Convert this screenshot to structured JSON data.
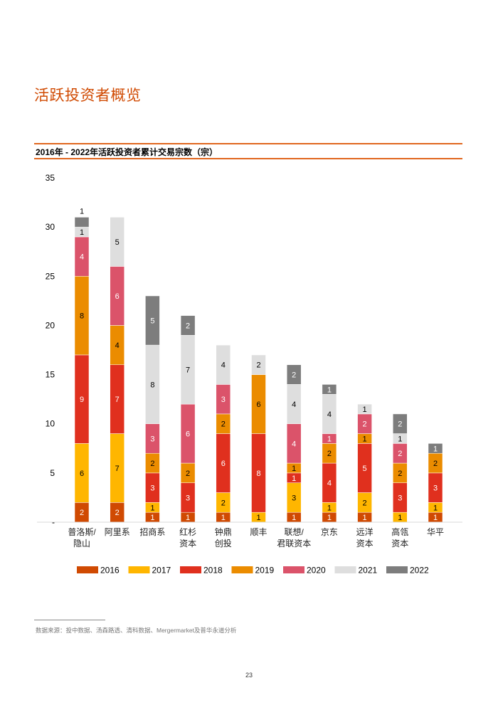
{
  "page": {
    "title": "活跃投资者概览",
    "chart_subtitle": "2016年 - 2022年活跃投资者累计交易宗数（宗）",
    "source": "数据来源：投中数据、汤森路透、清科数据、Mergermarket及普华永道分析",
    "page_number": "23"
  },
  "chart_data": {
    "type": "bar",
    "stacked": true,
    "title": "2016年 - 2022年活跃投资者累计交易宗数（宗）",
    "xlabel": "",
    "ylabel": "",
    "ylim": [
      0,
      35
    ],
    "yticks": [
      0,
      5,
      10,
      15,
      20,
      25,
      30,
      35
    ],
    "ytick_labels": [
      "-",
      "5",
      "10",
      "15",
      "20",
      "25",
      "30",
      "35"
    ],
    "grid": false,
    "legend_position": "bottom",
    "categories": [
      [
        "普洛斯/",
        "隐山"
      ],
      [
        "阿里系"
      ],
      [
        "招商系"
      ],
      [
        "红杉",
        "资本"
      ],
      [
        "钟鼎",
        "创投"
      ],
      [
        "顺丰"
      ],
      [
        "联想/",
        "君联资本"
      ],
      [
        "京东"
      ],
      [
        "远洋",
        "资本"
      ],
      [
        "高瓴",
        "资本"
      ],
      [
        "华平"
      ]
    ],
    "series": [
      {
        "name": "2016",
        "color": "#D04A02",
        "label_color": "#ffffff",
        "values": [
          2,
          2,
          1,
          1,
          1,
          0,
          1,
          1,
          1,
          0,
          1
        ]
      },
      {
        "name": "2017",
        "color": "#FFB600",
        "label_color": "#000000",
        "values": [
          6,
          7,
          1,
          0,
          2,
          1,
          3,
          1,
          2,
          1,
          1
        ]
      },
      {
        "name": "2018",
        "color": "#E0301E",
        "label_color": "#ffffff",
        "values": [
          9,
          7,
          3,
          3,
          6,
          8,
          1,
          4,
          5,
          3,
          3
        ]
      },
      {
        "name": "2019",
        "color": "#EB8C00",
        "label_color": "#000000",
        "values": [
          8,
          4,
          2,
          2,
          2,
          6,
          1,
          2,
          1,
          2,
          2
        ]
      },
      {
        "name": "2020",
        "color": "#DB536A",
        "label_color": "#ffffff",
        "values": [
          4,
          6,
          3,
          6,
          3,
          0,
          4,
          1,
          2,
          2,
          0
        ]
      },
      {
        "name": "2021",
        "color": "#DEDEDE",
        "label_color": "#000000",
        "values": [
          1,
          5,
          8,
          7,
          4,
          2,
          4,
          4,
          1,
          1,
          0
        ]
      },
      {
        "name": "2022",
        "color": "#7D7D7D",
        "label_color": "#ffffff",
        "values": [
          1,
          0,
          5,
          2,
          0,
          0,
          2,
          1,
          0,
          2,
          1
        ]
      }
    ],
    "totals": [
      31,
      31,
      23,
      21,
      18,
      17,
      16,
      14,
      12,
      11,
      8
    ],
    "label_overrides": [
      {
        "category_index": 0,
        "series": "2022",
        "position": "above",
        "label_color": "#000000"
      }
    ]
  }
}
